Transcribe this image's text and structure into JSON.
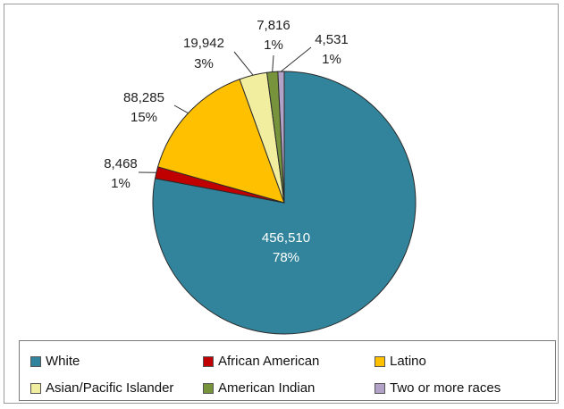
{
  "chart_data": {
    "type": "pie",
    "title": "",
    "slices": [
      {
        "name": "White",
        "value": 456510,
        "value_label": "456,510",
        "percent_label": "78%",
        "color": "#31849b"
      },
      {
        "name": "African American",
        "value": 8468,
        "value_label": "8,468",
        "percent_label": "1%",
        "color": "#c00000"
      },
      {
        "name": "Latino",
        "value": 88285,
        "value_label": "88,285",
        "percent_label": "15%",
        "color": "#ffc000"
      },
      {
        "name": "Asian/Pacific Islander",
        "value": 19942,
        "value_label": "19,942",
        "percent_label": "3%",
        "color": "#f2eea0"
      },
      {
        "name": "American Indian",
        "value": 7816,
        "value_label": "7,816",
        "percent_label": "1%",
        "color": "#77933c"
      },
      {
        "name": "Two or more races",
        "value": 4531,
        "value_label": "4,531",
        "percent_label": "1%",
        "color": "#b3a2c7"
      }
    ],
    "legend_position": "bottom"
  }
}
